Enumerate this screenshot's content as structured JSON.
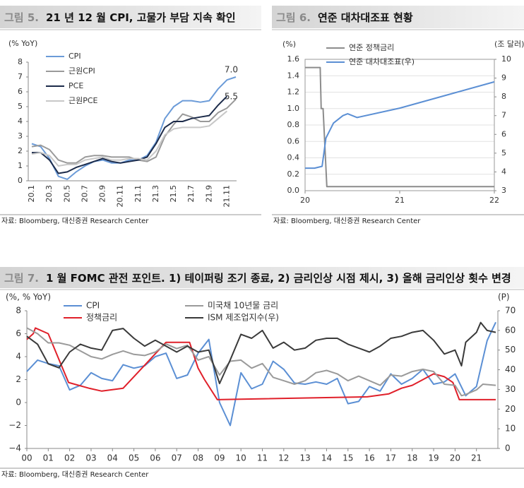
{
  "chart_data": [
    {
      "type": "line",
      "figure_label": "그림 5.",
      "title": "21 년 12 월 CPI, 고물가 부담 지속 확인",
      "y_label": "(% YoY)",
      "categories": [
        "20.1",
        null,
        "20.3",
        null,
        "20.5",
        null,
        "20.7",
        null,
        "20.9",
        null,
        "20.11",
        null,
        "21.1",
        null,
        "21.3",
        null,
        "21.5",
        null,
        "21.7",
        null,
        "21.9",
        null,
        "21.11",
        null
      ],
      "series": [
        {
          "name": "CPI",
          "color": "#6b9bd8",
          "values": [
            2.5,
            2.3,
            1.5,
            0.3,
            0.1,
            0.6,
            1.0,
            1.3,
            1.4,
            1.2,
            1.2,
            1.4,
            1.4,
            1.7,
            2.6,
            4.2,
            5.0,
            5.4,
            5.4,
            5.3,
            5.4,
            6.2,
            6.8,
            7.0
          ]
        },
        {
          "name": "근원CPI",
          "color": "#9a9a9a",
          "values": [
            2.3,
            2.4,
            2.1,
            1.4,
            1.2,
            1.2,
            1.6,
            1.7,
            1.7,
            1.6,
            1.6,
            1.6,
            1.4,
            1.3,
            1.6,
            3.0,
            3.8,
            4.5,
            4.3,
            4.0,
            4.0,
            4.6,
            4.9,
            5.5
          ]
        },
        {
          "name": "PCE",
          "color": "#1c2b4a",
          "values": [
            1.9,
            1.9,
            1.4,
            0.5,
            0.6,
            0.9,
            1.1,
            1.3,
            1.5,
            1.3,
            1.2,
            1.3,
            1.4,
            1.6,
            2.5,
            3.6,
            4.0,
            4.0,
            4.2,
            4.3,
            4.4,
            5.1,
            5.7,
            null
          ]
        },
        {
          "name": "근원PCE",
          "color": "#c8c8c8",
          "values": [
            1.8,
            1.9,
            1.7,
            1.0,
            1.1,
            1.1,
            1.4,
            1.5,
            1.6,
            1.4,
            1.4,
            1.5,
            1.5,
            1.4,
            2.0,
            3.1,
            3.5,
            3.6,
            3.6,
            3.6,
            3.7,
            4.2,
            4.7,
            null
          ]
        }
      ],
      "annotations": [
        "7.0",
        "5.5"
      ],
      "ylim": [
        0,
        8
      ],
      "yticks": [
        0,
        1,
        2,
        3,
        4,
        5,
        6,
        7,
        8
      ],
      "grid": false,
      "source": "자료: Bloomberg, 대신증권 Research Center"
    },
    {
      "type": "line",
      "figure_label": "그림 6.",
      "title": "연준 대차대조표 현황",
      "y_label": "(%)",
      "y2_label": "(조 달러)",
      "xlim": [
        20,
        22
      ],
      "xticks": [
        20,
        21,
        22
      ],
      "series": [
        {
          "name": "연준 정책금리",
          "color": "#8c8c8c",
          "x": [
            20,
            20.16,
            20.17,
            20.19,
            20.23,
            22
          ],
          "values": [
            1.5,
            1.5,
            1.0,
            1.0,
            0.05,
            0.05
          ]
        },
        {
          "name": "연준 대차대조표(우)",
          "color": "#5b8fd4",
          "axis": "y2",
          "x": [
            20,
            20.1,
            20.18,
            20.22,
            20.3,
            20.4,
            20.45,
            20.55,
            21,
            21.5,
            22
          ],
          "values": [
            4.2,
            4.2,
            4.3,
            5.8,
            6.6,
            7.0,
            7.1,
            6.9,
            7.4,
            8.1,
            8.8
          ]
        }
      ],
      "ylim": [
        0,
        1.6
      ],
      "yticks": [
        {
          "value": 0,
          "label": "0.0"
        },
        {
          "value": 0.2,
          "label": "0.2"
        },
        {
          "value": 0.4,
          "label": "0.4"
        },
        {
          "value": 0.6,
          "label": "0.6"
        },
        {
          "value": 0.8,
          "label": "0.8"
        },
        {
          "value": 1.0,
          "label": "1.0"
        },
        {
          "value": 1.2,
          "label": "1.2"
        },
        {
          "value": 1.4,
          "label": "1.4"
        },
        {
          "value": 1.6,
          "label": "1.6"
        }
      ],
      "y2lim": [
        3,
        10
      ],
      "y2ticks": [
        3,
        4,
        5,
        6,
        7,
        8,
        9,
        10
      ],
      "grid": true,
      "source": "자료: Bloomberg, 대신증권 Research Center"
    },
    {
      "type": "line",
      "figure_label": "그림 7.",
      "title": "1 월 FOMC 관전 포인트. 1) 테이퍼링 조기 종료, 2) 금리인상 시점 제시, 3) 올해 금리인상 횟수 변경",
      "y_label": "(%, % YoY)",
      "y2_label": "(P)",
      "xlim": [
        0,
        22
      ],
      "xticks": [
        {
          "value": 0,
          "label": "00"
        },
        {
          "value": 1,
          "label": "01"
        },
        {
          "value": 2,
          "label": "02"
        },
        {
          "value": 3,
          "label": "03"
        },
        {
          "value": 4,
          "label": "04"
        },
        {
          "value": 5,
          "label": "05"
        },
        {
          "value": 6,
          "label": "06"
        },
        {
          "value": 7,
          "label": "07"
        },
        {
          "value": 8,
          "label": "08"
        },
        {
          "value": 9,
          "label": "09"
        },
        10,
        11,
        12,
        13,
        14,
        15,
        16,
        17,
        18,
        19,
        20,
        21
      ],
      "series": [
        {
          "name": "CPI",
          "color": "#5b8fd4",
          "x": [
            0,
            0.5,
            1,
            1.5,
            2,
            2.5,
            3,
            3.5,
            4,
            4.5,
            5,
            5.5,
            6,
            6.5,
            7,
            7.5,
            8,
            8.5,
            9,
            9.5,
            10,
            10.5,
            11,
            11.5,
            12,
            12.5,
            13,
            13.5,
            14,
            14.5,
            15,
            15.5,
            16,
            16.5,
            17,
            17.5,
            18,
            18.5,
            19,
            19.5,
            20,
            20.5,
            21,
            21.5,
            21.9
          ],
          "values": [
            2.7,
            3.7,
            3.4,
            3.2,
            1.1,
            1.5,
            2.6,
            2.1,
            1.9,
            3.3,
            3.0,
            3.2,
            4.0,
            4.3,
            2.1,
            2.4,
            4.3,
            5.5,
            0.0,
            -2.0,
            2.6,
            1.2,
            1.6,
            3.6,
            2.9,
            1.7,
            1.6,
            1.8,
            1.6,
            2.1,
            -0.1,
            0.1,
            1.4,
            1.0,
            2.5,
            1.6,
            2.1,
            2.9,
            1.6,
            1.8,
            2.5,
            0.6,
            1.4,
            5.4,
            7.0
          ]
        },
        {
          "name": "정책금리",
          "color": "#e0202a",
          "x": [
            0,
            0.3,
            0.4,
            1.0,
            1.5,
            1.95,
            2.9,
            3.5,
            4.5,
            5,
            5.5,
            6,
            6.5,
            7.6,
            8,
            8.3,
            8.9,
            15.9,
            16.9,
            17.5,
            18,
            18.5,
            19,
            19.5,
            19.9,
            20.2,
            21.9
          ],
          "values": [
            5.5,
            6.0,
            6.5,
            6.0,
            3.75,
            1.75,
            1.25,
            1.0,
            1.25,
            2.25,
            3.25,
            4.25,
            5.25,
            5.25,
            3.0,
            2.0,
            0.25,
            0.5,
            0.75,
            1.25,
            1.5,
            2.0,
            2.5,
            2.25,
            1.75,
            0.25,
            0.25
          ]
        },
        {
          "name": "미국채 10년물 금리",
          "color": "#9a9a9a",
          "x": [
            0,
            0.5,
            1,
            1.5,
            2,
            2.5,
            3,
            3.5,
            4,
            4.5,
            5,
            5.5,
            6,
            6.5,
            7,
            7.5,
            8,
            8.5,
            9,
            9.5,
            10,
            10.5,
            11,
            11.5,
            12,
            12.5,
            13,
            13.5,
            14,
            14.5,
            15,
            15.5,
            16,
            16.5,
            17,
            17.5,
            18,
            18.5,
            19,
            19.5,
            20,
            20.3,
            20.5,
            21,
            21.3,
            21.9
          ],
          "values": [
            6.5,
            6.0,
            5.2,
            5.2,
            5.0,
            4.5,
            4.0,
            3.8,
            4.2,
            4.5,
            4.2,
            4.1,
            4.4,
            5.1,
            4.7,
            5.0,
            3.7,
            4.0,
            2.4,
            3.6,
            3.7,
            3.0,
            3.4,
            2.2,
            1.9,
            1.6,
            1.9,
            2.6,
            2.8,
            2.5,
            1.9,
            2.3,
            1.9,
            1.5,
            2.4,
            2.3,
            2.7,
            2.9,
            2.7,
            1.6,
            1.5,
            0.6,
            0.7,
            1.1,
            1.6,
            1.5
          ]
        },
        {
          "name": "ISM 제조업지수(우)",
          "color": "#3a3a3a",
          "axis": "y2",
          "x": [
            0,
            0.5,
            1,
            1.5,
            2,
            2.5,
            3,
            3.5,
            4,
            4.5,
            5,
            5.5,
            6,
            6.5,
            7,
            7.5,
            8,
            8.5,
            9,
            9.5,
            10,
            10.5,
            11,
            11.5,
            12,
            12.5,
            13,
            13.5,
            14,
            14.5,
            15,
            15.5,
            16,
            16.5,
            17,
            17.5,
            18,
            18.5,
            19,
            19.5,
            20,
            20.3,
            20.5,
            21,
            21.2,
            21.5,
            21.9
          ],
          "values": [
            57,
            53,
            43,
            41,
            49,
            53,
            51,
            50,
            60,
            61,
            56,
            52,
            55,
            52,
            49,
            52,
            49,
            50,
            33,
            45,
            58,
            56,
            60,
            51,
            54,
            50,
            51,
            55,
            56,
            56,
            53,
            51,
            49,
            52,
            56,
            57,
            59,
            60,
            55,
            48,
            50,
            42,
            54,
            59,
            64,
            60,
            59
          ]
        }
      ],
      "ylim": [
        -4,
        8
      ],
      "yticks": [
        {
          "value": -4,
          "label": "−4"
        },
        {
          "value": -2,
          "label": "−2"
        },
        0,
        2,
        4,
        6,
        8
      ],
      "y2lim": [
        0,
        70
      ],
      "y2ticks": [
        0,
        10,
        20,
        30,
        40,
        50,
        60,
        70
      ],
      "grid": false,
      "source": "자료: Bloomberg, 대신증권 Research Center"
    }
  ]
}
